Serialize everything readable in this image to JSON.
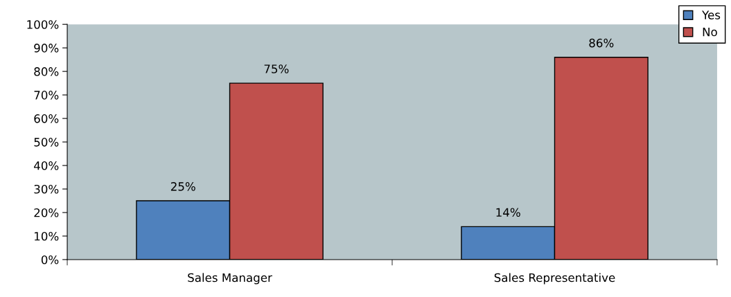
{
  "chart_data": {
    "type": "bar",
    "categories": [
      "Sales Manager",
      "Sales Representative"
    ],
    "series": [
      {
        "name": "Yes",
        "color": "#4f81bd",
        "values": [
          25,
          14
        ],
        "value_labels": [
          "25%",
          "14%"
        ]
      },
      {
        "name": "No",
        "color": "#c0504d",
        "values": [
          75,
          86
        ],
        "value_labels": [
          "75%",
          "86%"
        ]
      }
    ],
    "ylim": [
      0,
      100
    ],
    "yticks": [
      {
        "value": 0,
        "label": "0%"
      },
      {
        "value": 10,
        "label": "10%"
      },
      {
        "value": 20,
        "label": "20%"
      },
      {
        "value": 30,
        "label": "30%"
      },
      {
        "value": 40,
        "label": "40%"
      },
      {
        "value": 50,
        "label": "50%"
      },
      {
        "value": 60,
        "label": "60%"
      },
      {
        "value": 70,
        "label": "70%"
      },
      {
        "value": 80,
        "label": "80%"
      },
      {
        "value": 90,
        "label": "90%"
      },
      {
        "value": 100,
        "label": "100%"
      }
    ],
    "grid": false,
    "legend": "top right"
  }
}
